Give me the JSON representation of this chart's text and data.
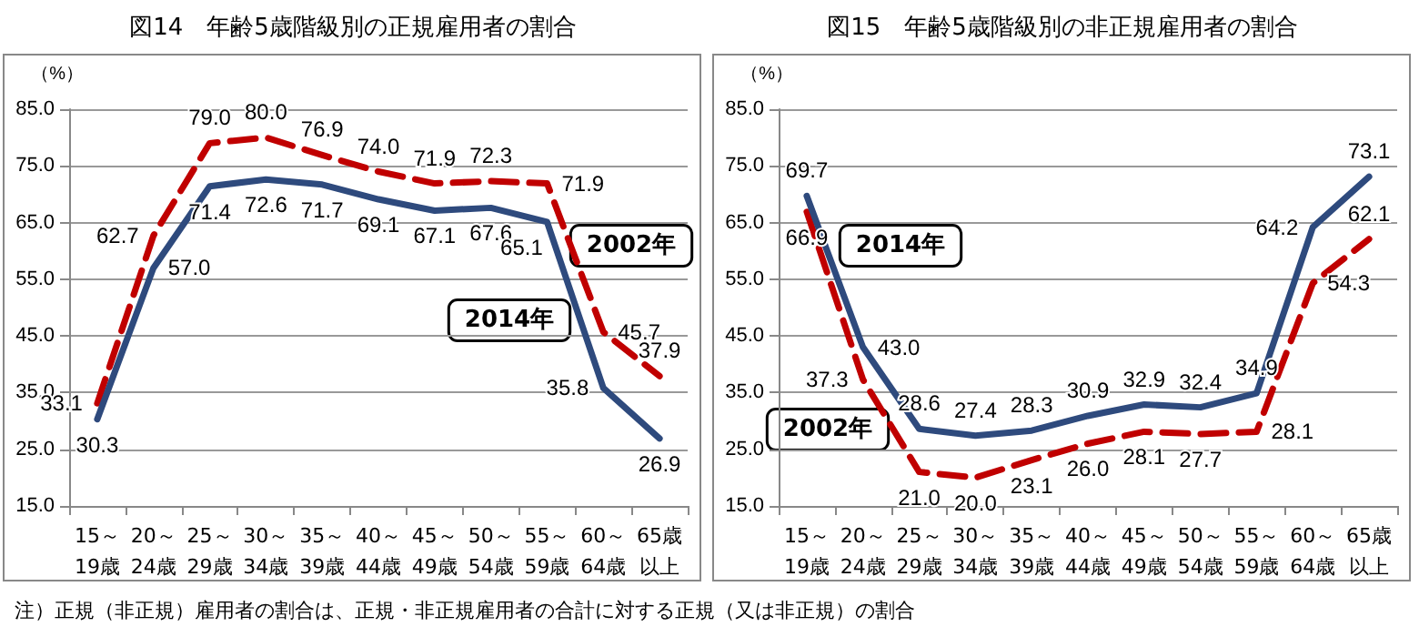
{
  "chart_data": [
    {
      "type": "line",
      "title": "図14　年齢5歳階級別の正規雇用者の割合",
      "ylabel": "（%）",
      "categories": [
        "15～19歳",
        "20～24歳",
        "25～29歳",
        "30～34歳",
        "35～39歳",
        "40～44歳",
        "45～49歳",
        "50～54歳",
        "55～59歳",
        "60～64歳",
        "65歳以上"
      ],
      "series": [
        {
          "name": "2002年",
          "color": "#c00000",
          "line_style": "dashed",
          "values": [
            33.1,
            62.7,
            79.0,
            80.0,
            76.9,
            74.0,
            71.9,
            72.3,
            71.9,
            45.7,
            37.9
          ],
          "value_labels": [
            "33.1",
            "62.7",
            "79.0",
            "80.0",
            "76.9",
            "74.0",
            "71.9",
            "72.3",
            "71.9",
            "45.7",
            "37.9"
          ]
        },
        {
          "name": "2014年",
          "color": "#2e4a7d",
          "line_style": "solid",
          "values": [
            30.3,
            57.0,
            71.4,
            72.6,
            71.7,
            69.1,
            67.1,
            67.6,
            65.1,
            35.8,
            26.9
          ],
          "value_labels": [
            "30.3",
            "57.0",
            "71.4",
            "72.6",
            "71.7",
            "69.1",
            "67.1",
            "67.6",
            "65.1",
            "35.8",
            "26.9"
          ]
        }
      ],
      "ylim": [
        15,
        85
      ],
      "yticks": [
        {
          "value": 15,
          "label": "15.0"
        },
        {
          "value": 25,
          "label": "25.0"
        },
        {
          "value": 35,
          "label": "35.0"
        },
        {
          "value": 45,
          "label": "45.0"
        },
        {
          "value": 55,
          "label": "55.0"
        },
        {
          "value": 65,
          "label": "65.0"
        },
        {
          "value": 75,
          "label": "75.0"
        },
        {
          "value": 85,
          "label": "85.0"
        }
      ],
      "grid": "y",
      "legend": false,
      "marker": "none",
      "annotations": [
        "注）正規（非正規）雇用者の割合は、正規・非正規雇用者の合計に対する正規（又は非正規）の割合"
      ]
    },
    {
      "type": "line",
      "title": "図15　年齢5歳階級別の非正規雇用者の割合",
      "ylabel": "（%）",
      "categories": [
        "15～19歳",
        "20～24歳",
        "25～29歳",
        "30～34歳",
        "35～39歳",
        "40～44歳",
        "45～49歳",
        "50～54歳",
        "55～59歳",
        "60～64歳",
        "65歳以上"
      ],
      "series": [
        {
          "name": "2002年",
          "color": "#c00000",
          "line_style": "dashed",
          "values": [
            66.9,
            37.3,
            21.0,
            20.0,
            23.1,
            26.0,
            28.1,
            27.7,
            28.1,
            54.3,
            62.1
          ],
          "value_labels": [
            "66.9",
            "37.3",
            "21.0",
            "20.0",
            "23.1",
            "26.0",
            "28.1",
            "27.7",
            "28.1",
            "54.3",
            "62.1"
          ]
        },
        {
          "name": "2014年",
          "color": "#2e4a7d",
          "line_style": "solid",
          "values": [
            69.7,
            43.0,
            28.6,
            27.4,
            28.3,
            30.9,
            32.9,
            32.4,
            34.9,
            64.2,
            73.1
          ],
          "value_labels": [
            "69.7",
            "43.0",
            "28.6",
            "27.4",
            "28.3",
            "30.9",
            "32.9",
            "32.4",
            "34.9",
            "64.2",
            "73.1"
          ]
        }
      ],
      "ylim": [
        15,
        85
      ],
      "yticks": [
        {
          "value": 15,
          "label": "15.0"
        },
        {
          "value": 25,
          "label": "25.0"
        },
        {
          "value": 35,
          "label": "35.0"
        },
        {
          "value": 45,
          "label": "45.0"
        },
        {
          "value": 55,
          "label": "55.0"
        },
        {
          "value": 65,
          "label": "65.0"
        },
        {
          "value": 75,
          "label": "75.0"
        },
        {
          "value": 85,
          "label": "85.0"
        }
      ],
      "grid": "y",
      "legend": false,
      "marker": "none"
    }
  ]
}
